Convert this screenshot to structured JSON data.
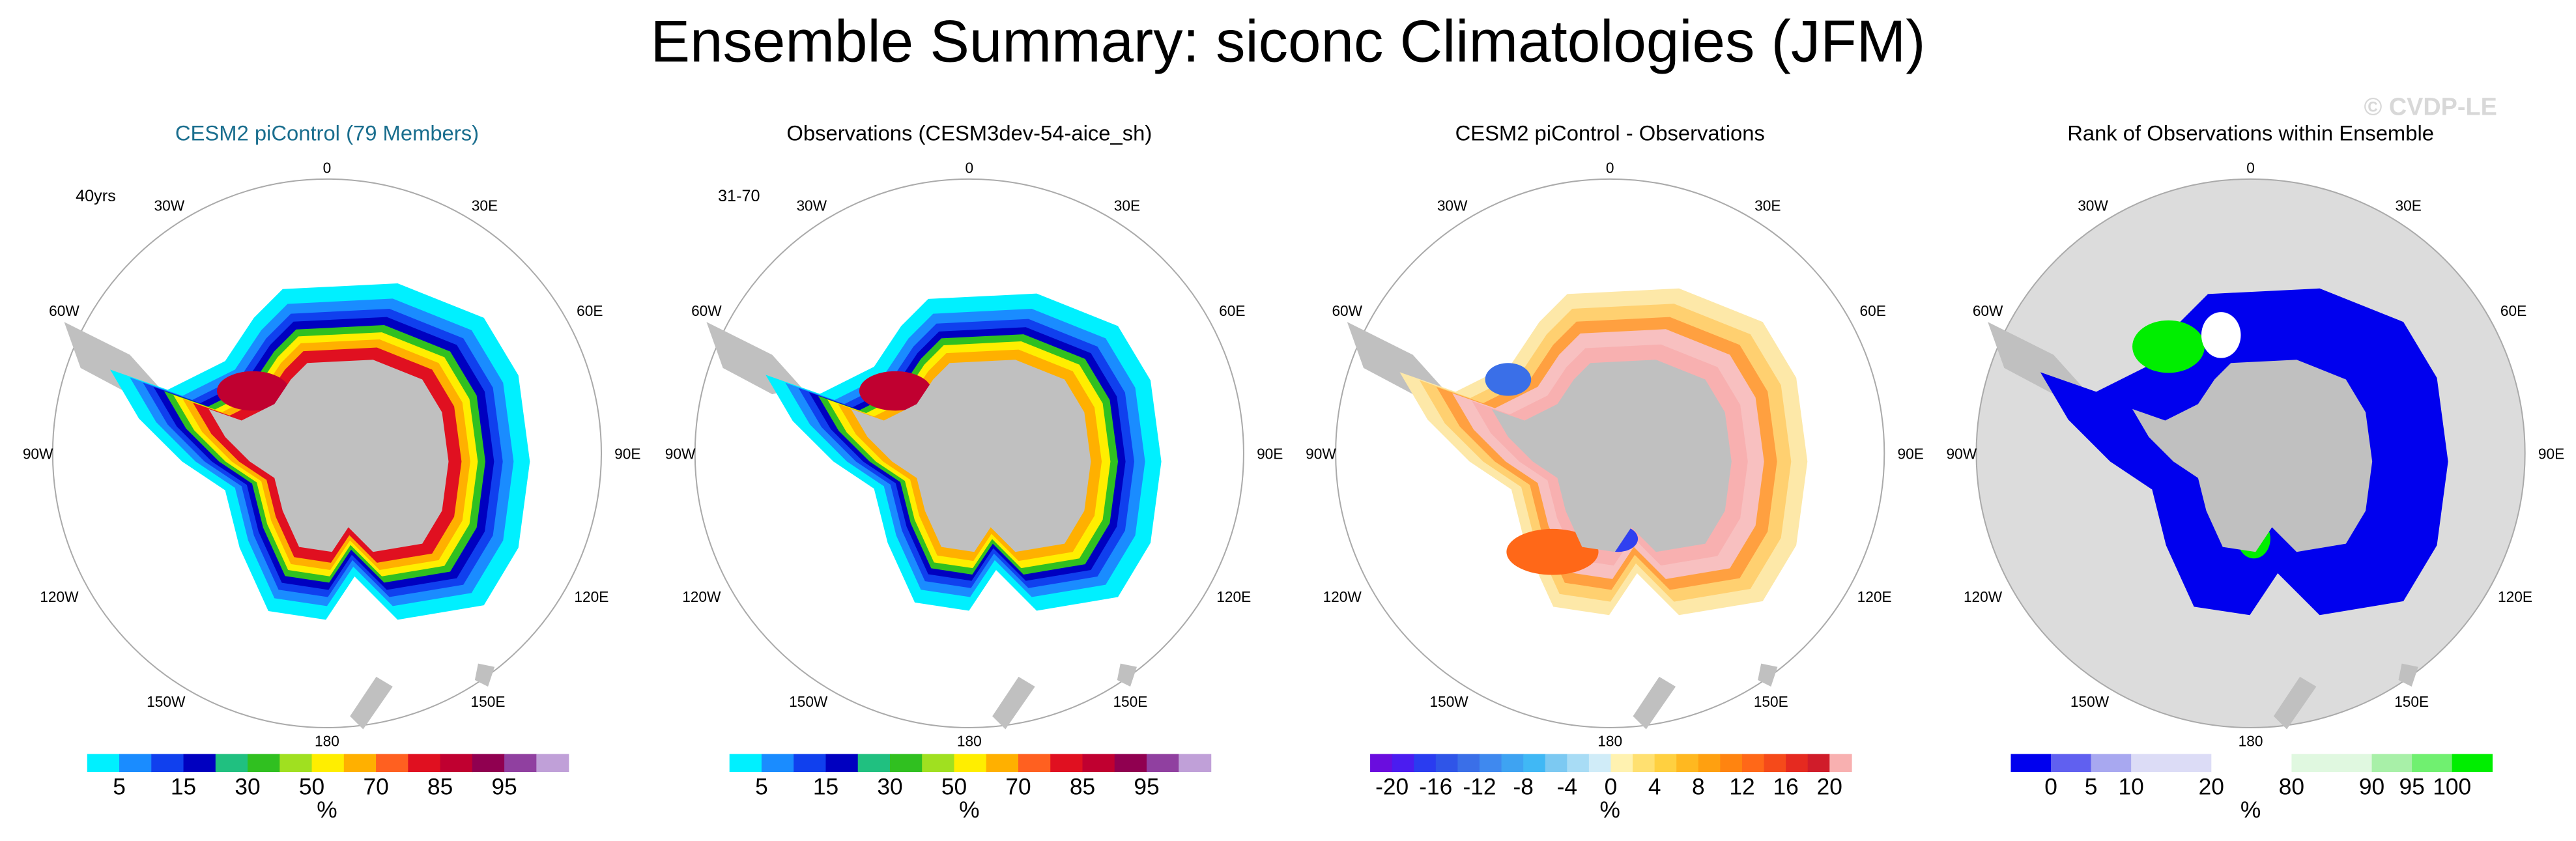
{
  "title": "Ensemble Summary: siconc Climatologies (JFM)",
  "watermark": "© CVDP-LE",
  "longitude_labels": [
    "0",
    "30E",
    "60E",
    "90E",
    "120E",
    "150E",
    "180",
    "150W",
    "120W",
    "90W",
    "60W",
    "30W"
  ],
  "panels": [
    {
      "title": "CESM2 piControl (79 Members)",
      "corner_label": "40yrs",
      "colorbar": {
        "colors": [
          "#00f0ff",
          "#1a8cff",
          "#1040ee",
          "#0000c0",
          "#20c080",
          "#30c020",
          "#a0e020",
          "#ffee00",
          "#ffb000",
          "#ff6020",
          "#e01020",
          "#c00030",
          "#900050",
          "#9040a0",
          "#c0a0d8"
        ],
        "ticks": [
          5,
          15,
          30,
          50,
          70,
          85,
          95
        ],
        "unit": "%"
      }
    },
    {
      "title": "Observations (CESM3dev-54-aice_sh)",
      "corner_label": "31-70",
      "colorbar": {
        "colors": [
          "#00f0ff",
          "#1a8cff",
          "#1040ee",
          "#0000c0",
          "#20c080",
          "#30c020",
          "#a0e020",
          "#ffee00",
          "#ffb000",
          "#ff6020",
          "#e01020",
          "#c00030",
          "#900050",
          "#9040a0",
          "#c0a0d8"
        ],
        "ticks": [
          5,
          15,
          30,
          50,
          70,
          85,
          95
        ],
        "unit": "%"
      }
    },
    {
      "title": "CESM2 piControl - Observations",
      "colorbar": {
        "colors": [
          "#6a0dde",
          "#4b1cf0",
          "#2a3cf0",
          "#2f55e8",
          "#3a6fe8",
          "#3f89ef",
          "#3ea3f2",
          "#40b8f5",
          "#7cc9f2",
          "#a8dcf5",
          "#d0ecf8",
          "#fff2b0",
          "#ffe070",
          "#ffd040",
          "#ffb820",
          "#ffa010",
          "#ff8410",
          "#ff6818",
          "#f54a1a",
          "#e52a20",
          "#d01c2a",
          "#f8b0b0"
        ],
        "ticks": [
          -20,
          -16,
          -12,
          -8,
          -4,
          0,
          4,
          8,
          12,
          16,
          20
        ],
        "unit": "%"
      }
    },
    {
      "title": "Rank of Observations within Ensemble",
      "colorbar": {
        "colors": [
          "#0000ee",
          "#6060f0",
          "#a8a8f0",
          "#dcdcf6",
          "#ffffff",
          "#e0f8e0",
          "#a8f0a8",
          "#70f070",
          "#00ee00"
        ],
        "ticks": [
          0,
          5,
          10,
          20,
          80,
          90,
          95,
          100
        ],
        "unit": "%"
      }
    }
  ]
}
